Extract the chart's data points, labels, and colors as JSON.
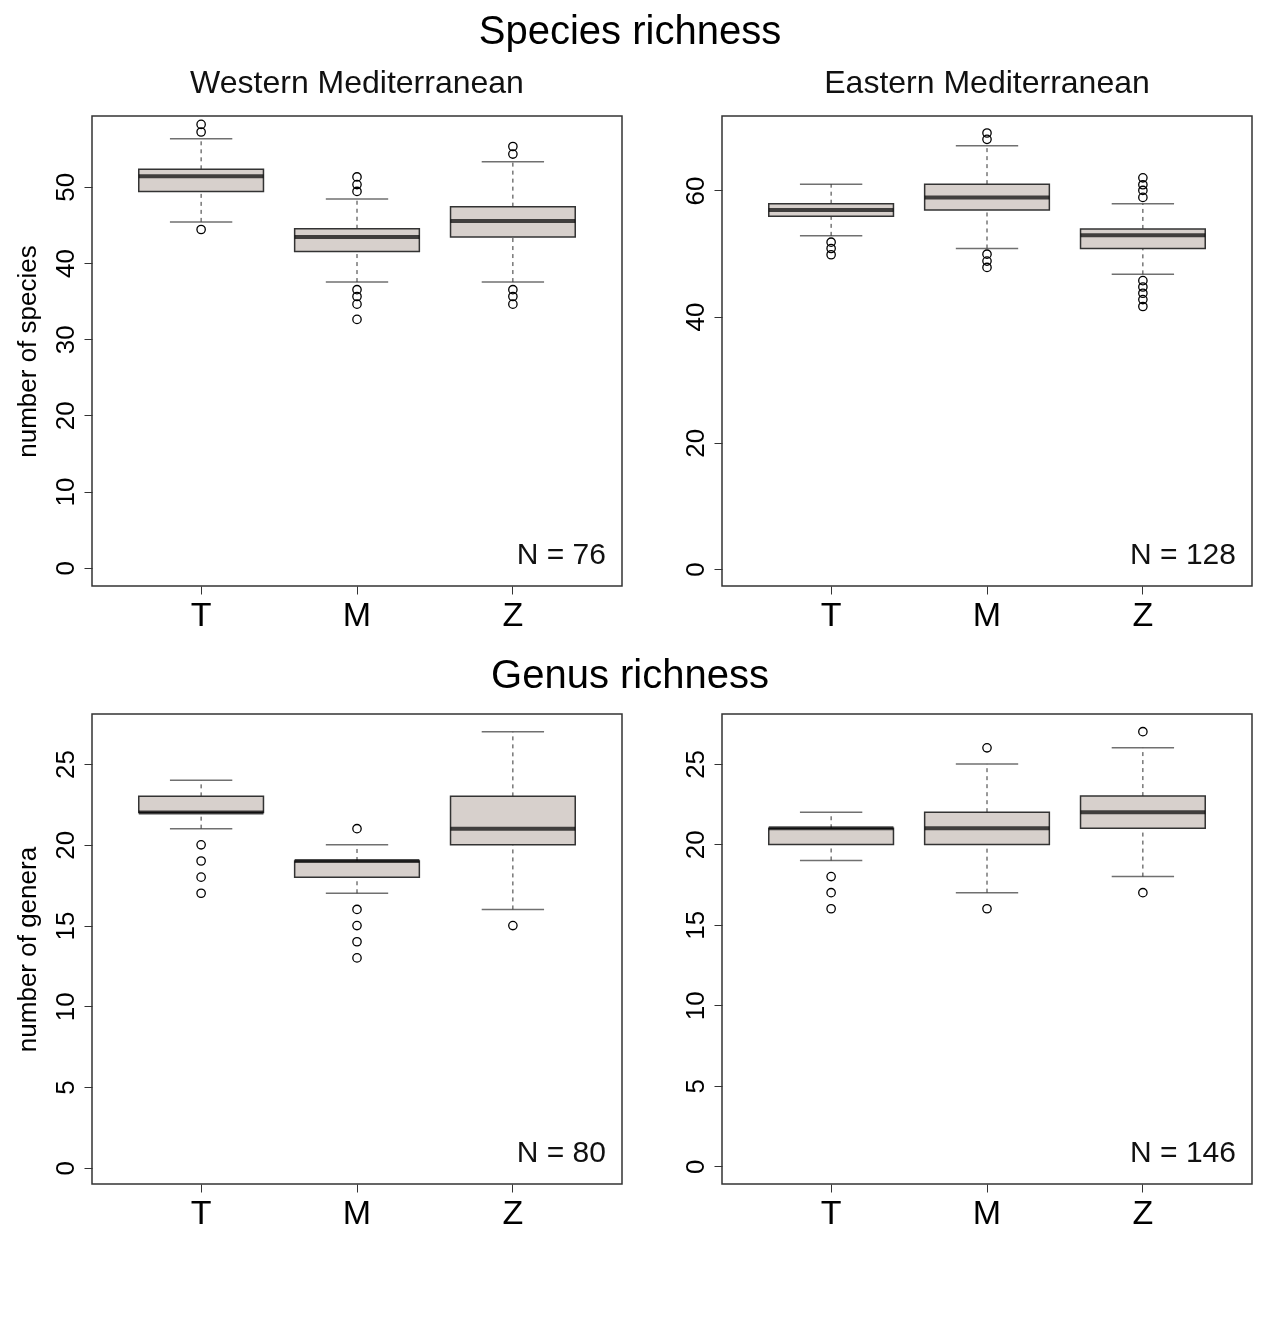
{
  "chart_data": [
    {
      "type": "box",
      "title": "Species richness",
      "subtitle": "Western Mediterranean",
      "ylabel": "number of species",
      "categories": [
        "T",
        "M",
        "Z"
      ],
      "ylim": [
        -2.4,
        59.3
      ],
      "yticks": [
        0,
        10,
        20,
        30,
        40,
        50
      ],
      "annotations": [
        "N = 76"
      ],
      "series": [
        {
          "color": "#d7d0cc",
          "boxes": [
            {
              "low": 45.4,
              "q1": 49.4,
              "median": 51.4,
              "q3": 52.3,
              "high": 56.3,
              "outliers": [
                58.2,
                57.2,
                44.4
              ]
            },
            {
              "low": 37.5,
              "q1": 41.5,
              "median": 43.4,
              "q3": 44.5,
              "high": 48.4,
              "outliers": [
                51.3,
                50.3,
                49.4,
                36.5,
                35.6,
                34.6,
                32.6
              ]
            },
            {
              "low": 37.5,
              "q1": 43.4,
              "median": 45.5,
              "q3": 47.4,
              "high": 53.3,
              "outliers": [
                55.3,
                54.3,
                36.5,
                35.6,
                34.6
              ]
            }
          ]
        }
      ]
    },
    {
      "type": "box",
      "subtitle": "Eastern Mediterranean",
      "categories": [
        "T",
        "M",
        "Z"
      ],
      "ylim": [
        -2.7,
        71.8
      ],
      "yticks": [
        0,
        20,
        40,
        60
      ],
      "annotations": [
        "N = 128"
      ],
      "series": [
        {
          "color": "#d7d0cc",
          "boxes": [
            {
              "low": 52.8,
              "q1": 55.9,
              "median": 56.9,
              "q3": 57.9,
              "high": 61.0,
              "outliers": [
                51.8,
                50.8,
                49.8
              ]
            },
            {
              "low": 50.8,
              "q1": 56.9,
              "median": 58.9,
              "q3": 61.0,
              "high": 67.1,
              "outliers": [
                69.1,
                68.1,
                49.9,
                48.8,
                47.8
              ]
            },
            {
              "low": 46.7,
              "q1": 50.8,
              "median": 52.9,
              "q3": 53.9,
              "high": 57.9,
              "outliers": [
                62.0,
                60.9,
                60.0,
                58.9,
                45.7,
                44.7,
                43.7,
                42.7,
                41.6
              ]
            }
          ]
        }
      ]
    },
    {
      "type": "box",
      "title": "Genus richness",
      "ylabel": "number of genera",
      "categories": [
        "T",
        "M",
        "Z"
      ],
      "ylim": [
        -1.0,
        28.1
      ],
      "yticks": [
        0,
        5,
        10,
        15,
        20,
        25
      ],
      "annotations": [
        "N = 80"
      ],
      "series": [
        {
          "color": "#d7d0cc",
          "boxes": [
            {
              "low": 21,
              "q1": 22,
              "median": 22,
              "q3": 23,
              "high": 24,
              "outliers": [
                20,
                19,
                18,
                17
              ]
            },
            {
              "low": 17,
              "q1": 18,
              "median": 19,
              "q3": 19,
              "high": 20,
              "outliers": [
                21,
                16,
                15,
                14,
                13
              ]
            },
            {
              "low": 16,
              "q1": 20,
              "median": 21,
              "q3": 23,
              "high": 27,
              "outliers": [
                15
              ]
            }
          ]
        }
      ]
    },
    {
      "type": "box",
      "categories": [
        "T",
        "M",
        "Z"
      ],
      "ylim": [
        -1.1,
        28.1
      ],
      "yticks": [
        0,
        5,
        10,
        15,
        20,
        25
      ],
      "annotations": [
        "N = 146"
      ],
      "series": [
        {
          "color": "#d7d0cc",
          "boxes": [
            {
              "low": 19,
              "q1": 20,
              "median": 21,
              "q3": 21,
              "high": 22,
              "outliers": [
                18,
                17,
                16
              ]
            },
            {
              "low": 17,
              "q1": 20,
              "median": 21,
              "q3": 22,
              "high": 25,
              "outliers": [
                26,
                16
              ]
            },
            {
              "low": 18,
              "q1": 21,
              "median": 22,
              "q3": 23,
              "high": 26,
              "outliers": [
                27,
                17
              ]
            }
          ]
        }
      ]
    }
  ]
}
